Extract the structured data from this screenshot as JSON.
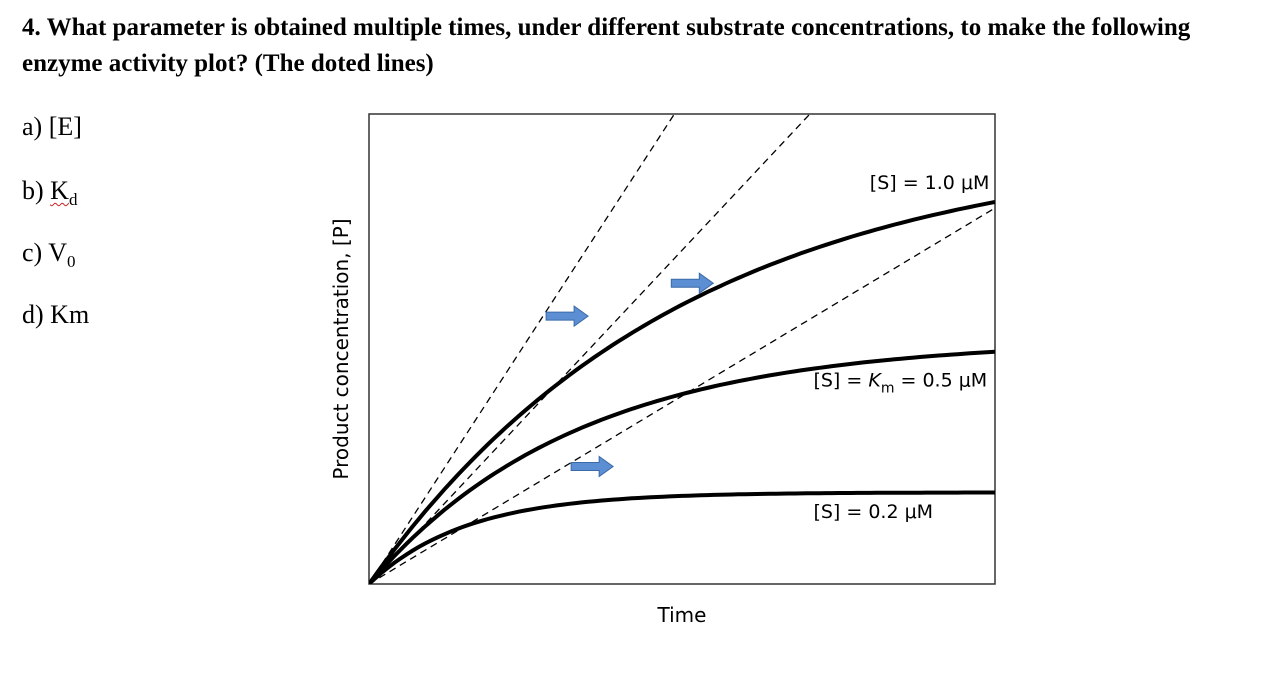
{
  "question": {
    "number": "4.",
    "text": "What parameter is obtained multiple times, under different substrate concentrations, to make the following enzyme activity plot? (The doted lines)"
  },
  "options": [
    {
      "letter": "a)",
      "text": "[E]",
      "sub": ""
    },
    {
      "letter": "b)",
      "text": "K",
      "sub": "d"
    },
    {
      "letter": "c)",
      "text": "V",
      "sub": "0"
    },
    {
      "letter": "d)",
      "text": "Km",
      "sub": ""
    }
  ],
  "chart_data": {
    "type": "line",
    "xlabel": "Time",
    "ylabel": "Product concentration, [P]",
    "xlim": [
      0,
      1
    ],
    "ylim": [
      0,
      1
    ],
    "grid": false,
    "ticks": false,
    "curve_style": {
      "color": "#000000",
      "width": 4
    },
    "tangent_style": {
      "color": "#000000",
      "dash": "dashed"
    },
    "arrow_color": "#5b8ed3",
    "series": [
      {
        "label": "[S] = 1.0 μM",
        "plateau": 0.94,
        "rate": 2.0,
        "tangent_slope": 2.05,
        "arrow": [
          0.35,
          0.57
        ]
      },
      {
        "label": "[S] = K_m = 0.5 μM",
        "plateau": 0.52,
        "rate": 3.0,
        "tangent_slope": 1.42,
        "arrow": [
          0.55,
          0.64
        ]
      },
      {
        "label": "[S] = 0.2 μM",
        "plateau": 0.195,
        "rate": 6.5,
        "tangent_slope": 0.8,
        "arrow": [
          0.39,
          0.25
        ]
      }
    ]
  }
}
